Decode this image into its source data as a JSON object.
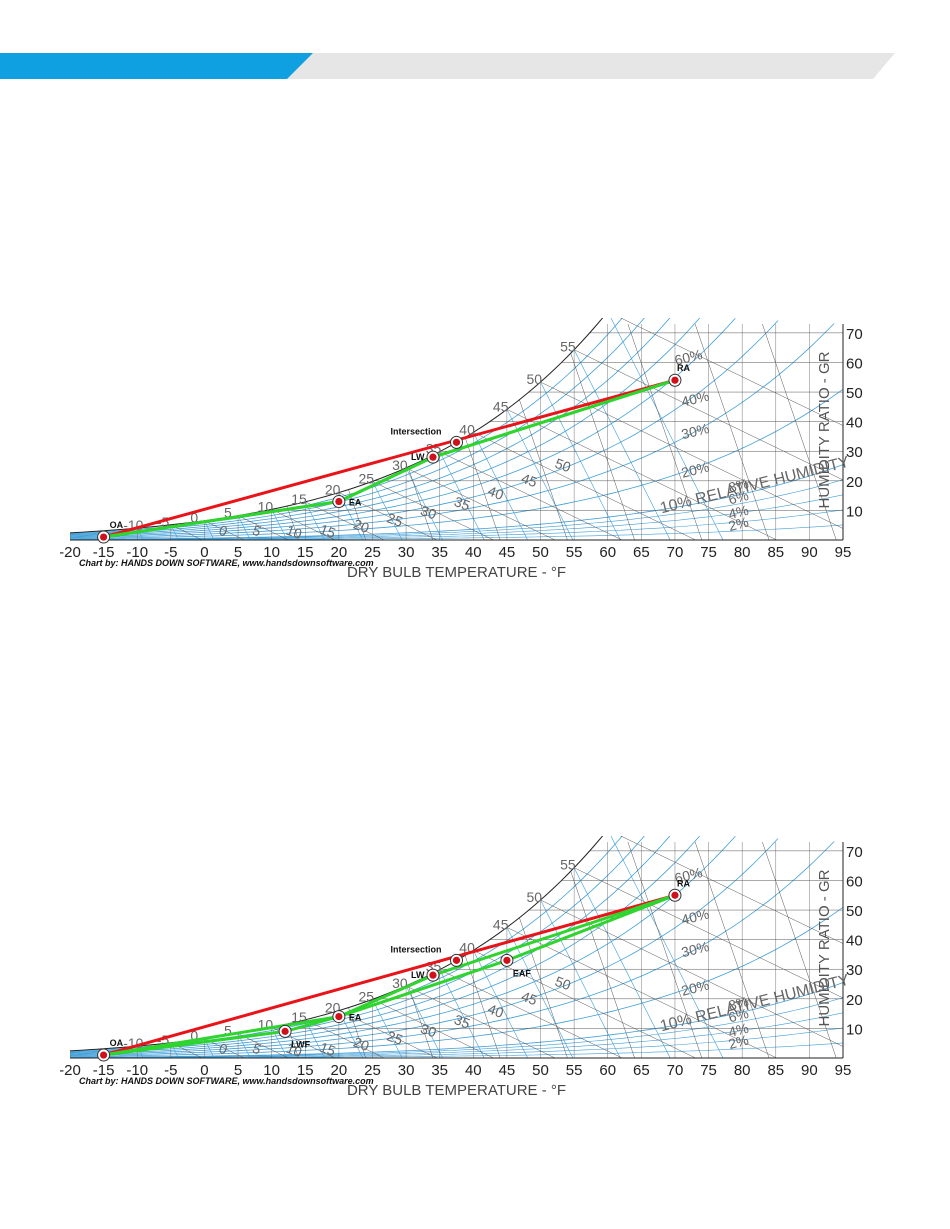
{
  "colors": {
    "accent_blue": "#0ea0e0",
    "band_gray": "#e6e6e6",
    "grid_blue": "#3f9fd8",
    "grid_black": "#555555",
    "line_red": "#e8141a",
    "line_green": "#2fd42f",
    "point_red": "#d0101a"
  },
  "chart_data": [
    {
      "type": "scatter",
      "title": "",
      "xlabel": "DRY BULB TEMPERATURE - °F",
      "ylabel": "HUMIDITY RATIO - GR",
      "credit": "Chart by: HANDS DOWN SOFTWARE, www.handsdownsoftware.com",
      "xlim": [
        -20,
        95
      ],
      "ylim": [
        0,
        73
      ],
      "x_ticks": [
        "-20",
        "-15",
        "-10",
        "-5",
        "0",
        "5",
        "10",
        "15",
        "20",
        "25",
        "30",
        "35",
        "40",
        "45",
        "50",
        "55",
        "60",
        "65",
        "70",
        "75",
        "80",
        "85",
        "90",
        "95"
      ],
      "y_ticks": [
        "10",
        "20",
        "30",
        "40",
        "50",
        "60",
        "70"
      ],
      "rh_labels": [
        "2%",
        "4%",
        "6%",
        "8%",
        "10% RELATIVE HUMIDITY",
        "20%",
        "30%",
        "40%",
        "60%"
      ],
      "wet_bulb_labels": [
        "-10",
        "-5",
        "0",
        "5",
        "10",
        "15",
        "20",
        "25",
        "30",
        "35",
        "40",
        "45",
        "50",
        "55"
      ],
      "enthalpy_labels": [
        "0",
        "5",
        "10",
        "15",
        "20",
        "25",
        "30",
        "35",
        "40",
        "45",
        "50"
      ],
      "points": [
        {
          "name": "OA",
          "x": -15,
          "y": 1
        },
        {
          "name": "EA",
          "x": 20,
          "y": 13
        },
        {
          "name": "LW",
          "x": 34,
          "y": 28
        },
        {
          "name": "Intersection",
          "x": 37.5,
          "y": 33
        },
        {
          "name": "RA",
          "x": 70,
          "y": 54
        }
      ],
      "series": [
        {
          "name": "",
          "color": "#e8141a",
          "points": [
            [
              -15,
              1
            ],
            [
              70,
              54
            ]
          ]
        },
        {
          "name": "",
          "color": "#2fd42f",
          "points": [
            [
              -15,
              1
            ],
            [
              20,
              13
            ],
            [
              34,
              28
            ],
            [
              70,
              54
            ]
          ]
        },
        {
          "name": "",
          "color": "#2fd42f",
          "points": [
            [
              -15,
              1
            ],
            [
              20,
              13
            ],
            [
              34,
              28
            ],
            [
              70,
              54
            ]
          ]
        }
      ]
    },
    {
      "type": "scatter",
      "title": "",
      "xlabel": "DRY BULB TEMPERATURE - °F",
      "ylabel": "HUMIDITY RATIO - GR",
      "credit": "Chart by: HANDS DOWN SOFTWARE, www.handsdownsoftware.com",
      "xlim": [
        -20,
        95
      ],
      "ylim": [
        0,
        73
      ],
      "x_ticks": [
        "-20",
        "-15",
        "-10",
        "-5",
        "0",
        "5",
        "10",
        "15",
        "20",
        "25",
        "30",
        "35",
        "40",
        "45",
        "50",
        "55",
        "60",
        "65",
        "70",
        "75",
        "80",
        "85",
        "90",
        "95"
      ],
      "y_ticks": [
        "10",
        "20",
        "30",
        "40",
        "50",
        "60",
        "70"
      ],
      "rh_labels": [
        "2%",
        "4%",
        "6%",
        "8%",
        "10% RELATIVE HUMIDITY",
        "20%",
        "30%",
        "40%",
        "60%"
      ],
      "wet_bulb_labels": [
        "-10",
        "-5",
        "0",
        "5",
        "10",
        "15",
        "20",
        "25",
        "30",
        "35",
        "40",
        "45",
        "50",
        "55"
      ],
      "enthalpy_labels": [
        "0",
        "5",
        "10",
        "15",
        "20",
        "25",
        "30",
        "35",
        "40",
        "45",
        "50"
      ],
      "points": [
        {
          "name": "OA",
          "x": -15,
          "y": 1
        },
        {
          "name": "LWF",
          "x": 12,
          "y": 9
        },
        {
          "name": "EA",
          "x": 20,
          "y": 14
        },
        {
          "name": "LW",
          "x": 34,
          "y": 28
        },
        {
          "name": "Intersection",
          "x": 37.5,
          "y": 33
        },
        {
          "name": "EAF",
          "x": 45,
          "y": 33
        },
        {
          "name": "RA",
          "x": 70,
          "y": 55
        }
      ],
      "series": [
        {
          "name": "",
          "color": "#e8141a",
          "points": [
            [
              -15,
              1
            ],
            [
              70,
              55
            ]
          ]
        },
        {
          "name": "",
          "color": "#2fd42f",
          "points": [
            [
              -15,
              1
            ],
            [
              12,
              9
            ],
            [
              20,
              14
            ],
            [
              34,
              28
            ],
            [
              70,
              55
            ]
          ]
        },
        {
          "name": "",
          "color": "#2fd42f",
          "points": [
            [
              -15,
              1
            ],
            [
              20,
              14
            ],
            [
              45,
              33
            ],
            [
              70,
              55
            ]
          ]
        }
      ]
    }
  ]
}
